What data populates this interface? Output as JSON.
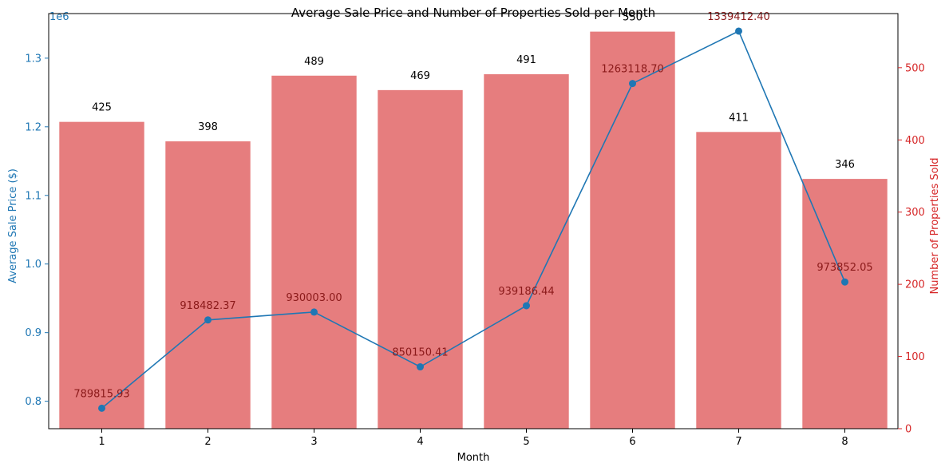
{
  "chart_data": {
    "type": "bar+line",
    "title": "Average Sale Price and Number of Properties Sold per Month",
    "xlabel": "Month",
    "ylabel_left": "Average Sale Price ($)",
    "ylabel_right": "Number of Properties Sold",
    "left_axis_offset_label": "1e6",
    "categories": [
      "1",
      "2",
      "3",
      "4",
      "5",
      "6",
      "7",
      "8"
    ],
    "left_ylim": [
      0.76,
      1.365
    ],
    "left_ticks": [
      "0.8",
      "0.9",
      "1.0",
      "1.1",
      "1.2",
      "1.3"
    ],
    "left_tick_values": [
      0.8,
      0.9,
      1.0,
      1.1,
      1.2,
      1.3
    ],
    "right_ylim": [
      0,
      575
    ],
    "right_ticks": [
      "0",
      "100",
      "200",
      "300",
      "400",
      "500"
    ],
    "right_tick_values": [
      0,
      100,
      200,
      300,
      400,
      500
    ],
    "grid": false,
    "colors": {
      "bars": "#e37b7c",
      "line": "#1f77b4",
      "left_axis": "#1f77b4",
      "right_axis": "#d62728",
      "bar_labels": "#000000",
      "line_labels": "#8b1a1a"
    },
    "series": [
      {
        "name": "Number of Properties Sold",
        "kind": "bar",
        "axis": "right",
        "values": [
          425,
          398,
          489,
          469,
          491,
          550,
          411,
          346
        ],
        "labels": [
          "425",
          "398",
          "489",
          "469",
          "491",
          "550",
          "411",
          "346"
        ]
      },
      {
        "name": "Average Sale Price ($)",
        "kind": "line",
        "axis": "left",
        "values": [
          789815.93,
          918482.37,
          930003.0,
          850150.41,
          939186.44,
          1263118.7,
          1339412.4,
          973852.05
        ],
        "labels": [
          "789815.93",
          "918482.37",
          "930003.00",
          "850150.41",
          "939186.44",
          "1263118.70",
          "1339412.40",
          "973852.05"
        ]
      }
    ]
  }
}
